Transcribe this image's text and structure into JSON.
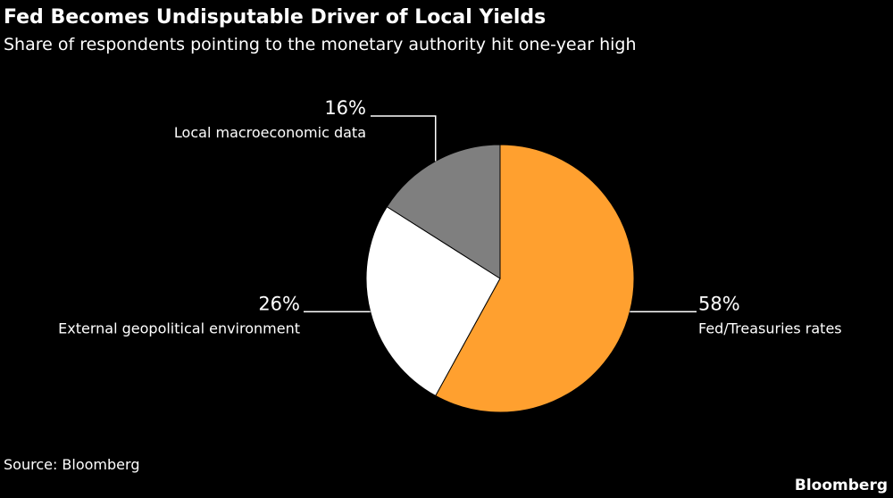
{
  "chart_data": {
    "type": "pie",
    "title": "Fed Becomes Undisputable Driver of Local Yields",
    "subtitle": "Share of respondents pointing to the monetary authority hit one-year high",
    "categories": [
      "Fed/Treasuries rates",
      "External geopolitical environment",
      "Local macroeconomic data"
    ],
    "values": [
      58,
      26,
      16
    ],
    "value_labels": [
      "58%",
      "26%",
      "16%"
    ],
    "colors": [
      "#ffa02f",
      "#ffffff",
      "#7f7f7f"
    ],
    "source": "Source: Bloomberg",
    "brand": "Bloomberg"
  }
}
